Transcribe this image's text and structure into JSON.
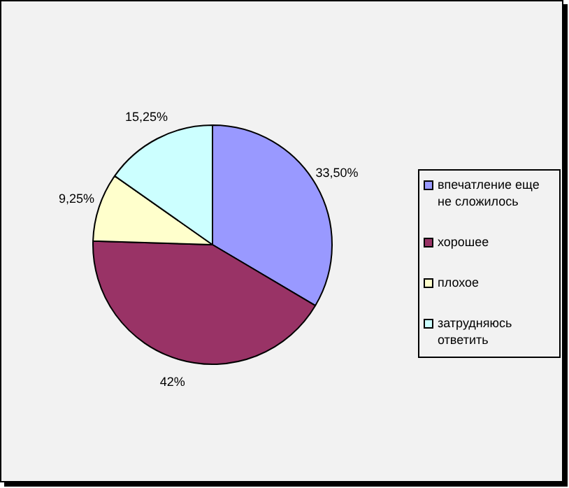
{
  "chart_data": {
    "type": "pie",
    "categories": [
      "впечатление еще не сложилось",
      "хорошее",
      "плохое",
      "затрудняюсь ответить"
    ],
    "values": [
      33.5,
      42,
      9.25,
      15.25
    ],
    "colors": [
      "#9999ff",
      "#993366",
      "#ffffcc",
      "#ccffff"
    ],
    "value_labels": [
      "33,50%",
      "42%",
      "9,25%",
      "15,25%"
    ],
    "legend": "right"
  }
}
